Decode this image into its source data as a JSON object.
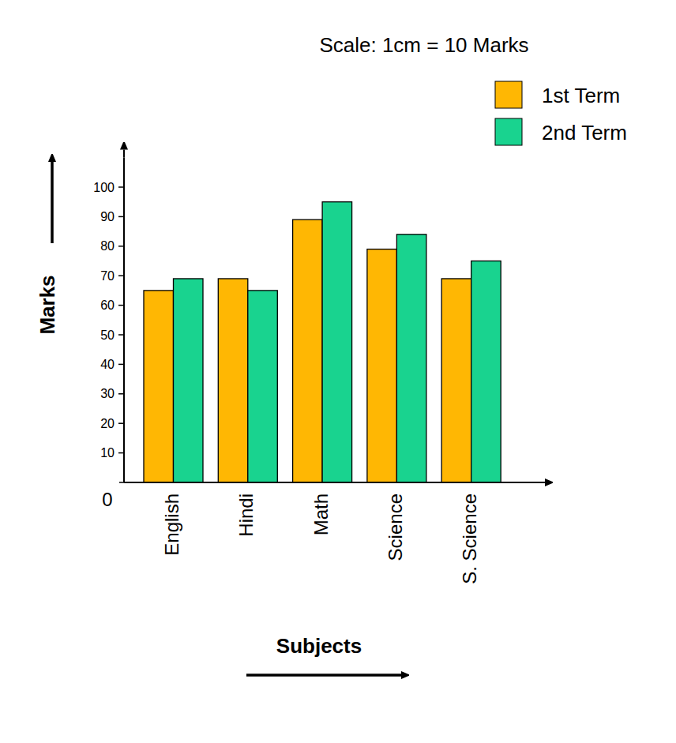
{
  "chart_data": {
    "type": "bar",
    "annotations": [
      "Scale: 1cm = 10 Marks"
    ],
    "x_label": "Subjects",
    "y_label": "Marks",
    "categories": [
      "English",
      "Hindi",
      "Math",
      "Science",
      "S. Science"
    ],
    "series": [
      {
        "name": "1st Term",
        "color": "#ffb703",
        "values": [
          65,
          69,
          89,
          79,
          69
        ]
      },
      {
        "name": "2nd Term",
        "color": "#19d38f",
        "values": [
          69,
          65,
          95,
          84,
          75
        ]
      }
    ],
    "ylim": [
      0,
      110
    ],
    "yticks": [
      0,
      10,
      20,
      30,
      40,
      50,
      60,
      70,
      80,
      90,
      100
    ],
    "legend": "top-right",
    "grid": false
  }
}
